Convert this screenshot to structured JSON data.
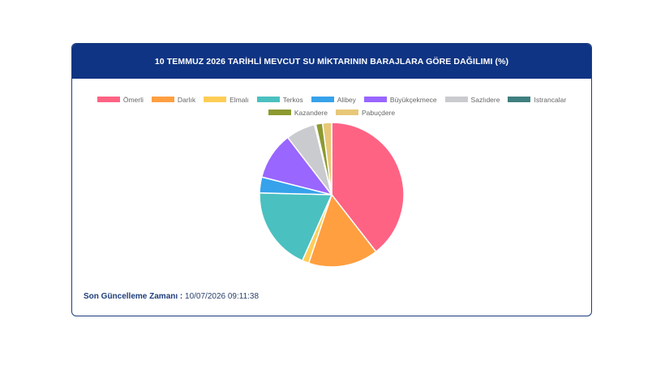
{
  "card": {
    "title": "10 TEMMUZ 2026 TARİHLİ MEVCUT SU MİKTARININ BARAJLARA GÖRE DAĞILIMI (%)"
  },
  "chart_data": {
    "type": "pie",
    "title": "10 TEMMUZ 2026 TARİHLİ MEVCUT SU MİKTARININ BARAJLARA GÖRE DAĞILIMI (%)",
    "legend_position": "top",
    "categories": [
      "Ömerli",
      "Darlık",
      "Elmalı",
      "Terkos",
      "Alibey",
      "Büyükçekmece",
      "Sazlıdere",
      "Istrancalar",
      "Kazandere",
      "Pabuçdere"
    ],
    "values": [
      39.0,
      15.5,
      1.5,
      18.5,
      3.5,
      10.5,
      6.5,
      0.3,
      1.5,
      2.0
    ],
    "colors": [
      "#ff6384",
      "#ff9f40",
      "#ffcd56",
      "#4bc0c0",
      "#36a2eb",
      "#9966ff",
      "#c9cbcf",
      "#3f7f7f",
      "#8c9a30",
      "#e8c878"
    ]
  },
  "footer": {
    "label": "Son Güncelleme Zamanı : ",
    "value": "10/07/2026 09:11:38"
  }
}
